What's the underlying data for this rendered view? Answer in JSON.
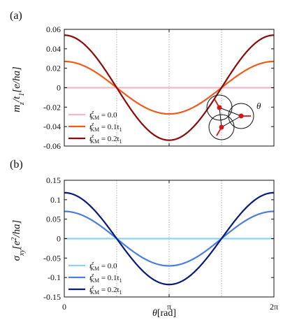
{
  "chart_data": [
    {
      "type": "line",
      "panel_label": "(a)",
      "ylabel": "m_z/t_1[e/ha]",
      "xlabel": "",
      "xlim": [
        0,
        6.2832
      ],
      "ylim": [
        -0.06,
        0.06
      ],
      "x_ticks": [
        {
          "value": 0,
          "label": "0"
        },
        {
          "value": 3.1416,
          "label": "π"
        },
        {
          "value": 6.2832,
          "label": "2π"
        }
      ],
      "y_ticks": [
        {
          "value": 0.06,
          "label": "0.06"
        },
        {
          "value": 0.04,
          "label": "0.04"
        },
        {
          "value": 0.02,
          "label": "0.02"
        },
        {
          "value": 0,
          "label": "0"
        },
        {
          "value": -0.02,
          "label": "-0.02"
        },
        {
          "value": -0.04,
          "label": "-0.04"
        },
        {
          "value": -0.06,
          "label": "-0.06"
        }
      ],
      "grid_x": [
        1.5708,
        3.1416,
        4.7124
      ],
      "legend_position": "bottom-left",
      "series": [
        {
          "name": "t_KM^z = 0.0",
          "amplitude": 0.0,
          "color": "#f4b6c2"
        },
        {
          "name": "t_KM^z = 0.1t_1",
          "amplitude": 0.027,
          "color": "#f05a1a"
        },
        {
          "name": "t_KM^z = 0.2t_1",
          "amplitude": 0.054,
          "color": "#8b0a0a"
        }
      ],
      "function": "amplitude*cos(theta)",
      "inset": {
        "theta_label": "θ"
      }
    },
    {
      "type": "line",
      "panel_label": "(b)",
      "ylabel": "σ_xy[e^2/ha]",
      "xlabel": "θ[rad]",
      "xlim": [
        0,
        6.2832
      ],
      "ylim": [
        -0.15,
        0.15
      ],
      "x_ticks": [
        {
          "value": 0,
          "label": "0"
        },
        {
          "value": 3.1416,
          "label": "π"
        },
        {
          "value": 6.2832,
          "label": "2π"
        }
      ],
      "y_ticks": [
        {
          "value": 0.15,
          "label": "0.15"
        },
        {
          "value": 0.1,
          "label": "0.1"
        },
        {
          "value": 0.05,
          "label": "0.05"
        },
        {
          "value": 0,
          "label": "0"
        },
        {
          "value": -0.05,
          "label": "-0.05"
        },
        {
          "value": -0.1,
          "label": "-0.1"
        },
        {
          "value": -0.15,
          "label": "-0.15"
        }
      ],
      "grid_x": [
        1.5708,
        3.1416,
        4.7124
      ],
      "legend_position": "bottom-left",
      "series": [
        {
          "name": "t_KM^z = 0.0",
          "amplitude": 0.0,
          "color": "#8fd3ee"
        },
        {
          "name": "t_KM^z = 0.1t_1",
          "amplitude": 0.07,
          "color": "#4a7fe0"
        },
        {
          "name": "t_KM^z = 0.2t_1",
          "amplitude": 0.118,
          "color": "#0a1a7a"
        }
      ],
      "function": "amplitude*cos(theta)"
    }
  ],
  "labels": {
    "a_panel": "(a)",
    "b_panel": "(b)",
    "a_ylabel_main": "m",
    "a_ylabel_sub": "z",
    "a_ylabel_rest": "/t",
    "a_ylabel_sub2": "1",
    "a_ylabel_unit": "[e/ha]",
    "b_ylabel_main": "σ",
    "b_ylabel_sub": "xy",
    "b_ylabel_unit_open": "[e",
    "b_ylabel_sup": "2",
    "b_ylabel_unit_close": "/ha]",
    "xlabel_theta": "θ",
    "xlabel_unit": "[rad]",
    "legend_t": "t",
    "legend_sup": "z",
    "legend_sub": "KM",
    "legend_a": [
      " = 0.0",
      " = 0.1t",
      " = 0.2t"
    ],
    "legend_t1_sub": "1",
    "theta": "θ"
  }
}
